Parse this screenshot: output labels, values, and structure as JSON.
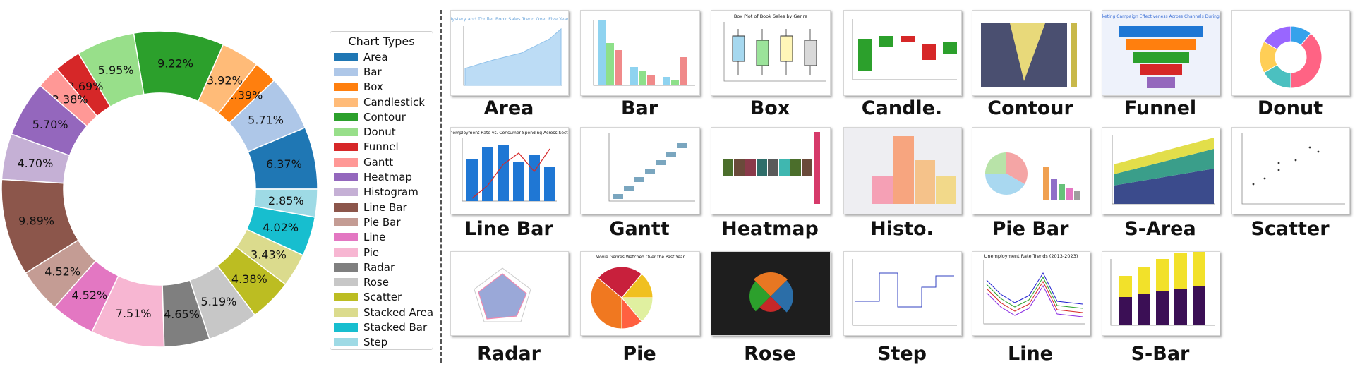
{
  "chart_data": {
    "type": "donut",
    "title": "",
    "legend_title": "Chart Types",
    "legend_position": "right",
    "slices": [
      {
        "label": "Area",
        "value": 6.37,
        "color": "#1f77b4"
      },
      {
        "label": "Bar",
        "value": 5.71,
        "color": "#aec7e8"
      },
      {
        "label": "Box",
        "value": 2.39,
        "color": "#ff7f0e"
      },
      {
        "label": "Candlestick",
        "value": 3.92,
        "color": "#ffbb78"
      },
      {
        "label": "Contour",
        "value": 9.22,
        "color": "#2ca02c"
      },
      {
        "label": "Donut",
        "value": 5.95,
        "color": "#98df8a"
      },
      {
        "label": "Funnel",
        "value": 2.69,
        "color": "#d62728"
      },
      {
        "label": "Gantt",
        "value": 2.38,
        "color": "#ff9896"
      },
      {
        "label": "Heatmap",
        "value": 5.7,
        "color": "#9467bd"
      },
      {
        "label": "Histogram",
        "value": 4.7,
        "color": "#c5b0d5"
      },
      {
        "label": "Line Bar",
        "value": 9.89,
        "color": "#8c564b"
      },
      {
        "label": "Pie Bar",
        "value": 4.52,
        "color": "#c49c94"
      },
      {
        "label": "Line",
        "value": 4.52,
        "color": "#e377c2"
      },
      {
        "label": "Pie",
        "value": 7.51,
        "color": "#f7b6d2"
      },
      {
        "label": "Radar",
        "value": 4.65,
        "color": "#7f7f7f"
      },
      {
        "label": "Rose",
        "value": 5.19,
        "color": "#c7c7c7"
      },
      {
        "label": "Scatter",
        "value": 4.38,
        "color": "#bcbd22"
      },
      {
        "label": "Stacked Area",
        "value": 3.43,
        "color": "#dbdb8d"
      },
      {
        "label": "Stacked Bar",
        "value": 4.02,
        "color": "#17becf"
      },
      {
        "label": "Step",
        "value": 2.85,
        "color": "#9edae5"
      }
    ],
    "value_format": "percent_2dp"
  },
  "gallery": {
    "thumbnails": [
      {
        "label": "Area",
        "kind": "area",
        "title": "Mystery and Thriller Book Sales Trend Over Five Years"
      },
      {
        "label": "Bar",
        "kind": "bar",
        "title": ""
      },
      {
        "label": "Box",
        "kind": "box",
        "title": "Box Plot of Book Sales by Genre"
      },
      {
        "label": "Candle.",
        "kind": "candle",
        "title": ""
      },
      {
        "label": "Contour",
        "kind": "contour",
        "title": ""
      },
      {
        "label": "Funnel",
        "kind": "funnel",
        "title": "Marketing Campaign Effectiveness Across Channels During Hol"
      },
      {
        "label": "Donut",
        "kind": "donut",
        "title": ""
      },
      {
        "label": "Line Bar",
        "kind": "linebar",
        "title": "Unemployment Rate vs. Consumer Spending Across Sector"
      },
      {
        "label": "Gantt",
        "kind": "gantt",
        "title": ""
      },
      {
        "label": "Heatmap",
        "kind": "heatmap",
        "title": ""
      },
      {
        "label": "Histo.",
        "kind": "histo",
        "title": ""
      },
      {
        "label": "Pie Bar",
        "kind": "piebar",
        "title": ""
      },
      {
        "label": "S-Area",
        "kind": "sarea",
        "title": ""
      },
      {
        "label": "Scatter",
        "kind": "scatter",
        "title": ""
      },
      {
        "label": "Radar",
        "kind": "radar",
        "title": ""
      },
      {
        "label": "Pie",
        "kind": "pie",
        "title": "Movie Genres Watched Over the Past Year"
      },
      {
        "label": "Rose",
        "kind": "rose",
        "title": ""
      },
      {
        "label": "Step",
        "kind": "step",
        "title": ""
      },
      {
        "label": "Line",
        "kind": "line",
        "title": "Unemployment Rate Trends (2013-2023)"
      },
      {
        "label": "S-Bar",
        "kind": "sbar",
        "title": ""
      }
    ]
  }
}
